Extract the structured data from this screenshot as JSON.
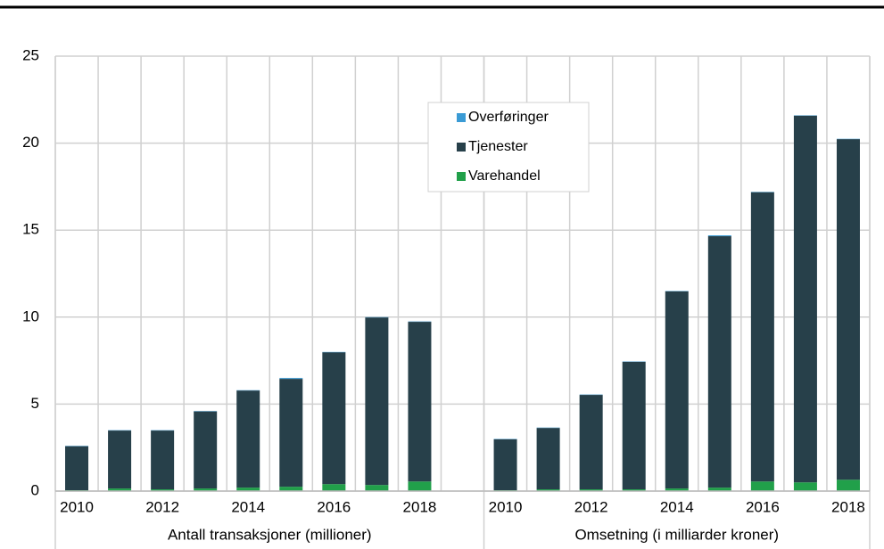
{
  "chart_data": {
    "type": "stacked-bar",
    "categories": [
      "2010",
      null,
      "2012",
      null,
      "2014",
      null,
      "2016",
      null,
      "2018",
      null,
      "2010",
      null,
      "2012",
      null,
      "2014",
      null,
      "2016",
      null,
      "2018"
    ],
    "groups": [
      "Antall transaksjoner (millioner)",
      "Omsetning (i milliarder kroner)"
    ],
    "series": [
      {
        "name": "Varehandel",
        "color": "#21a04a",
        "values": [
          0.05,
          0.15,
          0.1,
          0.15,
          0.2,
          0.25,
          0.4,
          0.35,
          0.55,
          null,
          0.05,
          0.1,
          0.1,
          0.1,
          0.15,
          0.2,
          0.55,
          0.5,
          0.65
        ]
      },
      {
        "name": "Tjenester",
        "color": "#27404a",
        "values": [
          2.53,
          3.33,
          3.38,
          4.43,
          5.58,
          6.2,
          7.58,
          9.63,
          9.18,
          null,
          2.93,
          3.53,
          5.43,
          7.33,
          11.33,
          14.45,
          16.63,
          21.08,
          19.58
        ]
      },
      {
        "name": "Overføringer",
        "color": "#3a9bd5",
        "values": [
          0.02,
          0.02,
          0.02,
          0.02,
          0.02,
          0.05,
          0.02,
          0.02,
          0.02,
          null,
          0.02,
          0.02,
          0.02,
          0.02,
          0.02,
          0.05,
          0.02,
          0.02,
          0.02
        ]
      }
    ],
    "ylim": [
      0,
      25
    ],
    "yticks": [
      0,
      5,
      10,
      15,
      20,
      25
    ],
    "grid": true
  }
}
